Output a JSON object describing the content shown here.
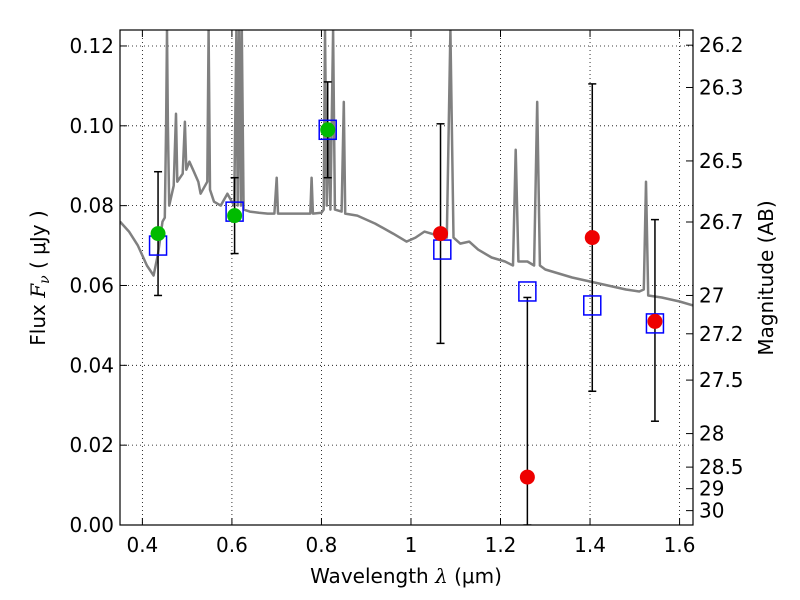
{
  "chart_data": {
    "type": "scatter",
    "title": "",
    "xlabel": {
      "prefix": "Wavelength ",
      "symbol": "λ",
      "unit": " (μm)"
    },
    "ylabel": {
      "prefix": "Flux ",
      "symbol_main": "F",
      "symbol_sub": "ν",
      "unit": " ( μJy )"
    },
    "y2label": "Magnitude (AB)",
    "xlim": [
      0.35,
      1.63
    ],
    "ylim": [
      0.0,
      0.124
    ],
    "grid": true,
    "grid_style": "dotted",
    "x_ticks": [
      0.4,
      0.6,
      0.8,
      1.0,
      1.2,
      1.4,
      1.6
    ],
    "x_tick_labels": [
      "0.4",
      "0.6",
      "0.8",
      "1",
      "1.2",
      "1.4",
      "1.6"
    ],
    "y_ticks": [
      0.0,
      0.02,
      0.04,
      0.06,
      0.08,
      0.1,
      0.12
    ],
    "y_tick_labels": [
      "0.00",
      "0.02",
      "0.04",
      "0.06",
      "0.08",
      "0.10",
      "0.12"
    ],
    "y2_ticks": [
      {
        "flux": 0.1202,
        "label": "26.2"
      },
      {
        "flux": 0.1096,
        "label": "26.3"
      },
      {
        "flux": 0.0912,
        "label": "26.5"
      },
      {
        "flux": 0.0759,
        "label": "26.7"
      },
      {
        "flux": 0.0575,
        "label": "27"
      },
      {
        "flux": 0.0479,
        "label": "27.2"
      },
      {
        "flux": 0.0363,
        "label": "27.5"
      },
      {
        "flux": 0.0229,
        "label": "28"
      },
      {
        "flux": 0.0145,
        "label": "28.5"
      },
      {
        "flux": 0.0091,
        "label": "29"
      },
      {
        "flux": 0.0036,
        "label": "30"
      }
    ],
    "colors": {
      "template": "#808080",
      "model_box": "#0000ff",
      "detection": "#00bb00",
      "low_snr": "#ee0000",
      "error_bar": "#000000",
      "grid": "#000000"
    },
    "series": [
      {
        "marker": "open-square",
        "color": "#0000ff",
        "points": [
          {
            "x": 0.435,
            "y": 0.07
          },
          {
            "x": 0.606,
            "y": 0.0785
          },
          {
            "x": 0.814,
            "y": 0.099
          },
          {
            "x": 1.07,
            "y": 0.069
          },
          {
            "x": 1.26,
            "y": 0.0585
          },
          {
            "x": 1.405,
            "y": 0.055
          },
          {
            "x": 1.545,
            "y": 0.0505
          }
        ]
      },
      {
        "marker": "filled-circle",
        "color": "#00bb00",
        "points": [
          {
            "x": 0.435,
            "y": 0.073,
            "err_low": 0.0575,
            "err_high": 0.0885
          },
          {
            "x": 0.606,
            "y": 0.0775,
            "err_low": 0.068,
            "err_high": 0.087
          },
          {
            "x": 0.814,
            "y": 0.099,
            "err_low": 0.087,
            "err_high": 0.111
          }
        ]
      },
      {
        "marker": "filled-circle",
        "color": "#ee0000",
        "points": [
          {
            "x": 1.066,
            "y": 0.073,
            "err_low": 0.0455,
            "err_high": 0.1005
          },
          {
            "x": 1.26,
            "y": 0.012,
            "err_low": 0.0,
            "err_high": 0.057
          },
          {
            "x": 1.405,
            "y": 0.072,
            "err_low": 0.0335,
            "err_high": 0.1105
          },
          {
            "x": 1.545,
            "y": 0.051,
            "err_low": 0.026,
            "err_high": 0.0765
          }
        ]
      },
      {
        "marker": "line",
        "color": "#808080",
        "points": [
          {
            "x": 0.35,
            "y": 0.076
          },
          {
            "x": 0.37,
            "y": 0.0735
          },
          {
            "x": 0.39,
            "y": 0.07
          },
          {
            "x": 0.41,
            "y": 0.065
          },
          {
            "x": 0.425,
            "y": 0.0625
          },
          {
            "x": 0.435,
            "y": 0.068
          },
          {
            "x": 0.445,
            "y": 0.076
          },
          {
            "x": 0.45,
            "y": 0.077
          },
          {
            "x": 0.453,
            "y": 0.1
          },
          {
            "x": 0.455,
            "y": 0.124
          },
          {
            "x": 0.457,
            "y": 0.1
          },
          {
            "x": 0.46,
            "y": 0.08
          },
          {
            "x": 0.47,
            "y": 0.085
          },
          {
            "x": 0.475,
            "y": 0.103
          },
          {
            "x": 0.478,
            "y": 0.086
          },
          {
            "x": 0.49,
            "y": 0.088
          },
          {
            "x": 0.495,
            "y": 0.101
          },
          {
            "x": 0.498,
            "y": 0.089
          },
          {
            "x": 0.505,
            "y": 0.091
          },
          {
            "x": 0.515,
            "y": 0.0885
          },
          {
            "x": 0.525,
            "y": 0.086
          },
          {
            "x": 0.53,
            "y": 0.083
          },
          {
            "x": 0.545,
            "y": 0.086
          },
          {
            "x": 0.548,
            "y": 0.124
          },
          {
            "x": 0.551,
            "y": 0.084
          },
          {
            "x": 0.56,
            "y": 0.081
          },
          {
            "x": 0.575,
            "y": 0.08
          },
          {
            "x": 0.59,
            "y": 0.083
          },
          {
            "x": 0.6,
            "y": 0.081
          },
          {
            "x": 0.605,
            "y": 0.08
          },
          {
            "x": 0.61,
            "y": 0.124
          },
          {
            "x": 0.613,
            "y": 0.08
          },
          {
            "x": 0.616,
            "y": 0.124
          },
          {
            "x": 0.62,
            "y": 0.08
          },
          {
            "x": 0.622,
            "y": 0.124
          },
          {
            "x": 0.626,
            "y": 0.079
          },
          {
            "x": 0.64,
            "y": 0.0785
          },
          {
            "x": 0.66,
            "y": 0.0782
          },
          {
            "x": 0.68,
            "y": 0.078
          },
          {
            "x": 0.695,
            "y": 0.078
          },
          {
            "x": 0.7,
            "y": 0.087
          },
          {
            "x": 0.703,
            "y": 0.078
          },
          {
            "x": 0.73,
            "y": 0.078
          },
          {
            "x": 0.76,
            "y": 0.078
          },
          {
            "x": 0.775,
            "y": 0.078
          },
          {
            "x": 0.778,
            "y": 0.087
          },
          {
            "x": 0.781,
            "y": 0.078
          },
          {
            "x": 0.8,
            "y": 0.0782
          },
          {
            "x": 0.805,
            "y": 0.079
          },
          {
            "x": 0.808,
            "y": 0.124
          },
          {
            "x": 0.812,
            "y": 0.08
          },
          {
            "x": 0.816,
            "y": 0.1
          },
          {
            "x": 0.82,
            "y": 0.079
          },
          {
            "x": 0.826,
            "y": 0.124
          },
          {
            "x": 0.83,
            "y": 0.079
          },
          {
            "x": 0.845,
            "y": 0.0785
          },
          {
            "x": 0.85,
            "y": 0.106
          },
          {
            "x": 0.853,
            "y": 0.078
          },
          {
            "x": 0.88,
            "y": 0.0775
          },
          {
            "x": 0.92,
            "y": 0.0755
          },
          {
            "x": 0.96,
            "y": 0.073
          },
          {
            "x": 0.99,
            "y": 0.071
          },
          {
            "x": 1.01,
            "y": 0.072
          },
          {
            "x": 1.03,
            "y": 0.0735
          },
          {
            "x": 1.06,
            "y": 0.0725
          },
          {
            "x": 1.08,
            "y": 0.072
          },
          {
            "x": 1.088,
            "y": 0.124
          },
          {
            "x": 1.095,
            "y": 0.072
          },
          {
            "x": 1.11,
            "y": 0.0705
          },
          {
            "x": 1.13,
            "y": 0.071
          },
          {
            "x": 1.15,
            "y": 0.069
          },
          {
            "x": 1.18,
            "y": 0.067
          },
          {
            "x": 1.21,
            "y": 0.066
          },
          {
            "x": 1.228,
            "y": 0.065
          },
          {
            "x": 1.234,
            "y": 0.094
          },
          {
            "x": 1.24,
            "y": 0.066
          },
          {
            "x": 1.26,
            "y": 0.066
          },
          {
            "x": 1.275,
            "y": 0.065
          },
          {
            "x": 1.282,
            "y": 0.106
          },
          {
            "x": 1.288,
            "y": 0.065
          },
          {
            "x": 1.3,
            "y": 0.064
          },
          {
            "x": 1.33,
            "y": 0.063
          },
          {
            "x": 1.36,
            "y": 0.062
          },
          {
            "x": 1.4,
            "y": 0.061
          },
          {
            "x": 1.44,
            "y": 0.06
          },
          {
            "x": 1.48,
            "y": 0.059
          },
          {
            "x": 1.51,
            "y": 0.0585
          },
          {
            "x": 1.52,
            "y": 0.059
          },
          {
            "x": 1.525,
            "y": 0.086
          },
          {
            "x": 1.53,
            "y": 0.0575
          },
          {
            "x": 1.56,
            "y": 0.057
          },
          {
            "x": 1.6,
            "y": 0.056
          },
          {
            "x": 1.63,
            "y": 0.055
          }
        ]
      }
    ]
  }
}
